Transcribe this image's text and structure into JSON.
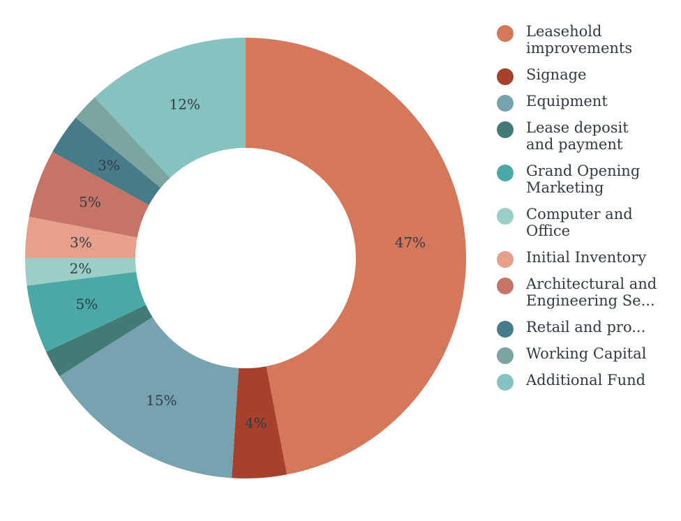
{
  "colors": {
    "leasehold": "#d5775a",
    "signage": "#a8412b",
    "equipment": "#76a3af",
    "lease_deposit": "#427a76",
    "grand_opening": "#4aa8a6",
    "computer_office": "#9bcec6",
    "initial_inventory": "#e6a08b",
    "architectural": "#c67465",
    "retail": "#467c89",
    "working_capital": "#7ca4a0",
    "additional_fund": "#86c2c0"
  },
  "chart_data": {
    "type": "pie",
    "donut": true,
    "title": "",
    "legend_position": "right",
    "categories": [
      "Leasehold improvements",
      "Signage",
      "Equipment",
      "Lease deposit and payment",
      "Grand Opening Marketing",
      "Computer and Office",
      "Initial Inventory",
      "Architectural and Engineering Se...",
      "Retail and pro...",
      "Working Capital",
      "Additional Fund"
    ],
    "legend_labels": [
      "Leasehold\nimprovements",
      "Signage",
      "Equipment",
      "Lease deposit\nand payment",
      "Grand Opening\nMarketing",
      "Computer and\nOffice",
      "Initial Inventory",
      "Architectural and\nEngineering Se...",
      "Retail and pro...",
      "Working Capital",
      "Additional Fund"
    ],
    "values": [
      47,
      4,
      15,
      2,
      5,
      2,
      3,
      5,
      3,
      2,
      12
    ],
    "data_labels": [
      "47%",
      "4%",
      "15%",
      "",
      "5%",
      "2%",
      "3%",
      "5%",
      "3%",
      "",
      "12%"
    ],
    "color_keys": [
      "leasehold",
      "signage",
      "equipment",
      "lease_deposit",
      "grand_opening",
      "computer_office",
      "initial_inventory",
      "architectural",
      "retail",
      "working_capital",
      "additional_fund"
    ]
  }
}
